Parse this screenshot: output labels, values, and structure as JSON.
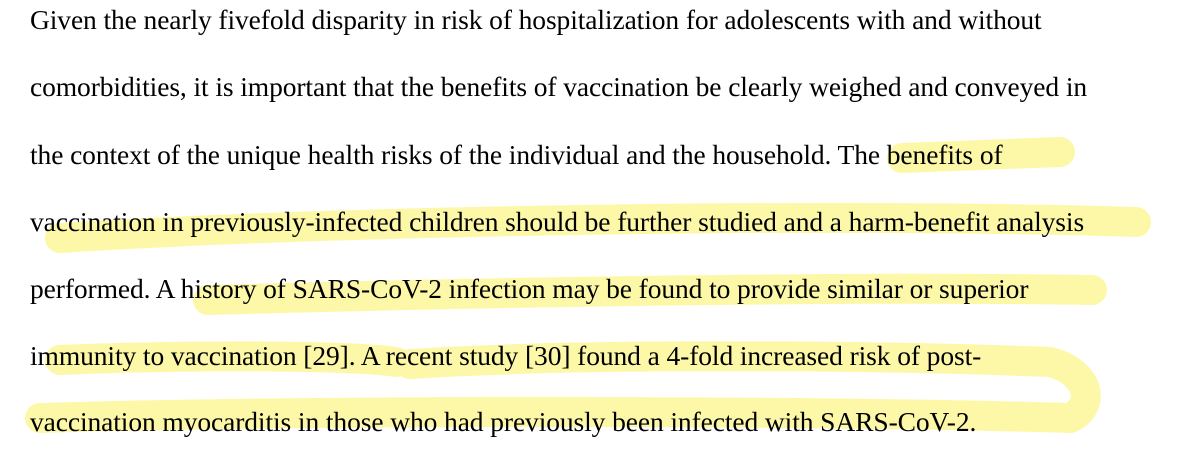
{
  "document": {
    "lines": [
      "Given the nearly fivefold disparity in risk of hospitalization for adolescents with and without",
      "comorbidities, it is important that the benefits of vaccination be clearly weighed and conveyed in",
      "the context of the unique health risks of the individual and the household. The benefits of",
      "vaccination in previously-infected children should be further studied and a harm-benefit analysis",
      "performed. A history of SARS-CoV-2 infection may be found to provide similar or superior",
      "immunity to vaccination [29]. A recent study [30] found a 4-fold increased risk of post-",
      "vaccination myocarditis in those who had previously been infected with SARS-CoV-2."
    ]
  },
  "highlight": {
    "color": "#fdf8a8"
  }
}
